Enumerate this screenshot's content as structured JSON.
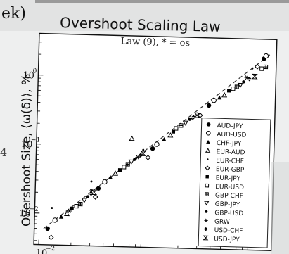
{
  "page": {
    "corner_text": "ek)",
    "side_fragment": "4"
  },
  "chart_data": {
    "type": "scatter",
    "title": "Overshoot Scaling Law",
    "subtitle": "Law (9), * = os",
    "ylabel": "Overshoot Size, ⟨ω(δ)⟩, %",
    "xlabel": "",
    "scale": "log-log",
    "xlim": [
      0.009,
      1.5
    ],
    "ylim": [
      0.0035,
      4
    ],
    "yticks": [
      {
        "value": 1,
        "label": "10^0"
      },
      {
        "value": 0.1,
        "label": "10^-1"
      },
      {
        "value": 0.01,
        "label": "10^-2"
      }
    ],
    "xticks": [
      {
        "value": 0.01,
        "label": "10^-2"
      }
    ],
    "grid": false,
    "legend_position": "lower-right",
    "fit_line": {
      "style": "dashed",
      "x": [
        0.011,
        1.3
      ],
      "y": [
        0.006,
        2.4
      ]
    },
    "series": [
      {
        "name": "AUD-JPY",
        "marker": "filled-circle",
        "x": [
          0.012,
          0.035,
          0.11,
          0.36,
          1.15
        ],
        "y": [
          0.006,
          0.024,
          0.095,
          0.42,
          2.1
        ]
      },
      {
        "name": "AUD-USD",
        "marker": "open-circle",
        "x": [
          0.014,
          0.04,
          0.12,
          0.4,
          1.2
        ],
        "y": [
          0.008,
          0.03,
          0.11,
          0.5,
          2.3
        ]
      },
      {
        "name": "CHF-JPY",
        "marker": "filled-triangle",
        "x": [
          0.016,
          0.045,
          0.14,
          0.45
        ],
        "y": [
          0.009,
          0.035,
          0.13,
          0.55
        ]
      },
      {
        "name": "EUR-AUD",
        "marker": "open-triangle",
        "x": [
          0.018,
          0.05,
          0.07,
          0.16,
          0.5
        ],
        "y": [
          0.01,
          0.04,
          0.13,
          0.15,
          0.6
        ]
      },
      {
        "name": "EUR-CHF",
        "marker": "small-dot",
        "x": [
          0.013,
          0.03,
          0.09,
          0.28,
          0.9
        ],
        "y": [
          0.012,
          0.03,
          0.09,
          0.32,
          1.5
        ]
      },
      {
        "name": "EUR-GBP",
        "marker": "open-diamond",
        "x": [
          0.013,
          0.033,
          0.1,
          0.3,
          1.0
        ],
        "y": [
          0.0045,
          0.018,
          0.07,
          0.3,
          1.6
        ]
      },
      {
        "name": "EUR-JPY",
        "marker": "filled-square",
        "x": [
          0.02,
          0.055,
          0.17,
          0.55
        ],
        "y": [
          0.012,
          0.045,
          0.17,
          0.7
        ]
      },
      {
        "name": "EUR-USD",
        "marker": "open-square",
        "x": [
          0.022,
          0.06,
          0.18,
          0.6,
          1.1
        ],
        "y": [
          0.013,
          0.05,
          0.19,
          0.75,
          1.5
        ]
      },
      {
        "name": "GBP-CHF",
        "marker": "crossed-square",
        "x": [
          0.024,
          0.065,
          0.2,
          0.65,
          1.2
        ],
        "y": [
          0.014,
          0.055,
          0.21,
          0.8,
          1.6
        ]
      },
      {
        "name": "GBP-JPY",
        "marker": "open-down-triangle",
        "x": [
          0.026,
          0.07,
          0.22,
          0.7
        ],
        "y": [
          0.016,
          0.06,
          0.23,
          0.85
        ]
      },
      {
        "name": "GBP-USD",
        "marker": "filled-small-circle",
        "x": [
          0.028,
          0.075,
          0.24,
          0.75
        ],
        "y": [
          0.018,
          0.065,
          0.26,
          0.95
        ]
      },
      {
        "name": "GRW",
        "marker": "asterisk",
        "x": [
          0.019,
          0.03,
          0.08,
          0.25,
          0.8
        ],
        "y": [
          0.011,
          0.022,
          0.07,
          0.27,
          1.1
        ]
      },
      {
        "name": "USD-CHF",
        "marker": "filled-diamond-star",
        "x": [
          0.03,
          0.085,
          0.26,
          0.85
        ],
        "y": [
          0.02,
          0.075,
          0.28,
          1.05
        ]
      },
      {
        "name": "USD-JPY",
        "marker": "open-hourglass",
        "x": [
          0.032,
          0.09,
          0.28,
          0.95
        ],
        "y": [
          0.021,
          0.08,
          0.3,
          1.15
        ]
      }
    ]
  }
}
